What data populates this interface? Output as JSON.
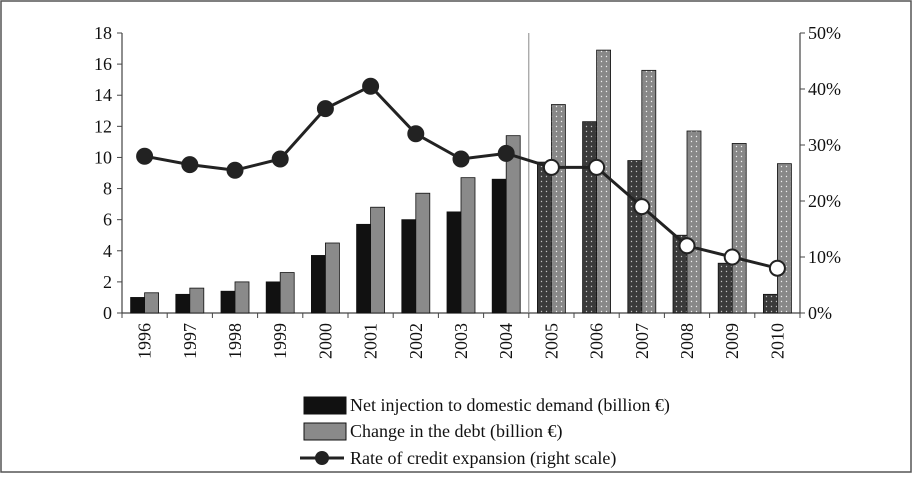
{
  "chart_data": {
    "type": "bar",
    "categories": [
      "1996",
      "1997",
      "1998",
      "1999",
      "2000",
      "2001",
      "2002",
      "2003",
      "2004",
      "2005",
      "2006",
      "2007",
      "2008",
      "2009",
      "2010"
    ],
    "projection_start": "2005",
    "series": [
      {
        "name": "Net injection to domestic demand (billion €)",
        "kind": "bar",
        "axis": "left",
        "color": "#111111",
        "values": [
          1.0,
          1.2,
          1.4,
          2.0,
          3.7,
          5.7,
          6.0,
          6.5,
          8.6,
          9.7,
          12.3,
          9.8,
          5.0,
          3.2,
          1.2
        ]
      },
      {
        "name": "Change in the debt (billion €)",
        "kind": "bar",
        "axis": "left",
        "color": "#8a8a8a",
        "values": [
          1.3,
          1.6,
          2.0,
          2.6,
          4.5,
          6.8,
          7.7,
          8.7,
          11.4,
          13.4,
          16.9,
          15.6,
          11.7,
          10.9,
          9.6
        ]
      },
      {
        "name": "Rate of credit expansion (right scale)",
        "kind": "line",
        "axis": "right",
        "color": "#222222",
        "values": [
          0.28,
          0.265,
          0.255,
          0.275,
          0.365,
          0.405,
          0.32,
          0.275,
          0.285,
          0.26,
          0.26,
          0.19,
          0.12,
          0.1,
          0.08
        ]
      }
    ],
    "y_left": {
      "lim": [
        0,
        18
      ],
      "ticks": [
        "0",
        "2",
        "4",
        "6",
        "8",
        "10",
        "12",
        "14",
        "16",
        "18"
      ]
    },
    "y_right": {
      "lim": [
        0,
        0.5
      ],
      "ticks": [
        "0%",
        "10%",
        "20%",
        "30%",
        "40%",
        "50%"
      ]
    },
    "grid": false,
    "legend_position": "bottom-center"
  }
}
